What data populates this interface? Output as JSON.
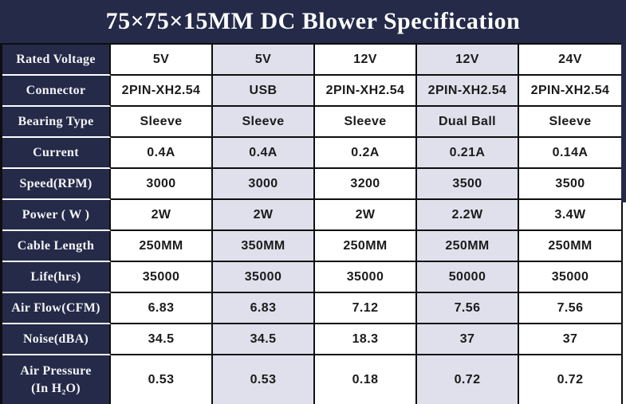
{
  "title": "75×75×15MM DC Blower Specification",
  "colors": {
    "header_bg": "#242a48",
    "stripe_bg": "#dfe0ec",
    "plain_bg": "#ffffff",
    "border": "#0e0e0e",
    "label_text": "#f4f4f6",
    "data_text": "#1b1b1b"
  },
  "spec_table": {
    "rows": [
      {
        "label": "Rated Voltage",
        "values": [
          "5V",
          "5V",
          "12V",
          "12V",
          "24V"
        ]
      },
      {
        "label": "Connector",
        "values": [
          "2PIN-XH2.54",
          "USB",
          "2PIN-XH2.54",
          "2PIN-XH2.54",
          "2PIN-XH2.54"
        ]
      },
      {
        "label": "Bearing Type",
        "values": [
          "Sleeve",
          "Sleeve",
          "Sleeve",
          "Dual Ball",
          "Sleeve"
        ]
      },
      {
        "label": "Current",
        "values": [
          "0.4A",
          "0.4A",
          "0.2A",
          "0.21A",
          "0.14A"
        ]
      },
      {
        "label": "Speed(RPM)",
        "values": [
          "3000",
          "3000",
          "3200",
          "3500",
          "3500"
        ]
      },
      {
        "label": "Power ( W )",
        "values": [
          "2W",
          "2W",
          "2W",
          "2.2W",
          "3.4W"
        ]
      },
      {
        "label": "Cable Length",
        "values": [
          "250MM",
          "350MM",
          "250MM",
          "250MM",
          "250MM"
        ]
      },
      {
        "label": "Life(hrs)",
        "values": [
          "35000",
          "35000",
          "35000",
          "50000",
          "35000"
        ]
      },
      {
        "label": "Air Flow(CFM)",
        "values": [
          "6.83",
          "6.83",
          "7.12",
          "7.56",
          "7.56"
        ]
      },
      {
        "label": "Noise(dBA)",
        "values": [
          "34.5",
          "34.5",
          "18.3",
          "37",
          "37"
        ]
      },
      {
        "label": "Air Pressure\n(In H₂O)",
        "values": [
          "0.53",
          "0.53",
          "0.18",
          "0.72",
          "0.72"
        ]
      }
    ]
  }
}
